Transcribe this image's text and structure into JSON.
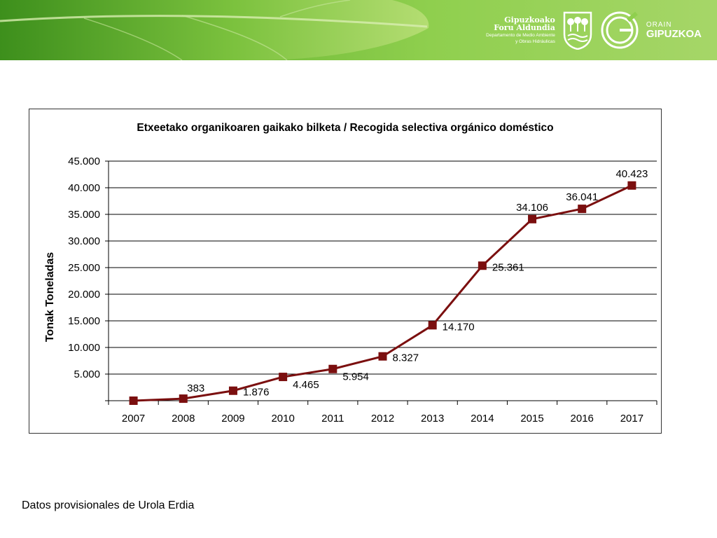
{
  "banner": {
    "org_line1": "Gipuzkoako",
    "org_line2": "Foru Aldundia",
    "dept_line1": "Departamento de Medio Ambiente",
    "dept_line2": "y Obras Hidráulicas",
    "orain_small": "ORAIN",
    "orain_big": "GIPUZKOA",
    "colors": {
      "green_dark": "#57a52a",
      "green_light": "#a6d668"
    }
  },
  "chart_data": {
    "type": "line",
    "title": "Etxeetako organikoaren gaikako bilketa / Recogida selectiva orgánico doméstico",
    "ylabel": "Tonak Toneladas",
    "xlabel": "",
    "categories": [
      "2007",
      "2008",
      "2009",
      "2010",
      "2011",
      "2012",
      "2013",
      "2014",
      "2015",
      "2016",
      "2017"
    ],
    "series": [
      {
        "values": [
          0,
          383,
          1876,
          4465,
          5954,
          8327,
          14170,
          25361,
          34106,
          36041,
          40423
        ],
        "labels": [
          "",
          "383",
          "1.876",
          "4.465",
          "5.954",
          "8.327",
          "14.170",
          "25.361",
          "34.106",
          "36.041",
          "40.423"
        ],
        "color": "#7b0f0f"
      }
    ],
    "ylim": [
      0,
      45000
    ],
    "yticks": [
      0,
      5000,
      10000,
      15000,
      20000,
      25000,
      30000,
      35000,
      40000,
      45000
    ],
    "ytick_labels": [
      "",
      "5.000",
      "10.000",
      "15.000",
      "20.000",
      "25.000",
      "30.000",
      "35.000",
      "40.000",
      "45.000"
    ],
    "grid": true,
    "legend": "none"
  },
  "footnote": "Datos provisionales de Urola Erdia"
}
